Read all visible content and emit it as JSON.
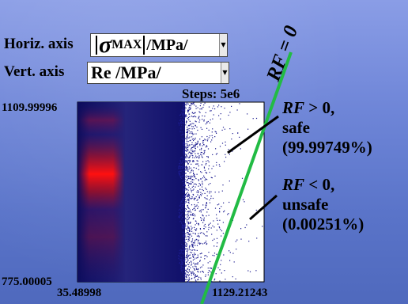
{
  "controls": {
    "horiz_label": "Horiz. axis",
    "horiz_value": {
      "symbol": "σ",
      "subscript": "MAX",
      "suffix": "/MPa/"
    },
    "vert_label": "Vert. axis",
    "vert_value": "Re /MPa/"
  },
  "plot": {
    "steps": "Steps: 5e6",
    "y_max_label": "1109.99996",
    "y_min_label": "775.00005",
    "x_min_label": "35.48998",
    "x_max_label": "1129.21243"
  },
  "annotations": {
    "rf_zero": "RF = 0",
    "safe_rf": "RF",
    "safe_cond": " > 0,",
    "safe_word": "safe",
    "safe_pct": "(99.99749%)",
    "unsafe_rf": "RF",
    "unsafe_cond": " < 0,",
    "unsafe_word": "unsafe",
    "unsafe_pct": "(0.00251%)"
  },
  "colors": {
    "limit_line": "#22bb44",
    "scatter": "#1c1c90",
    "hot": "#e00000"
  }
}
